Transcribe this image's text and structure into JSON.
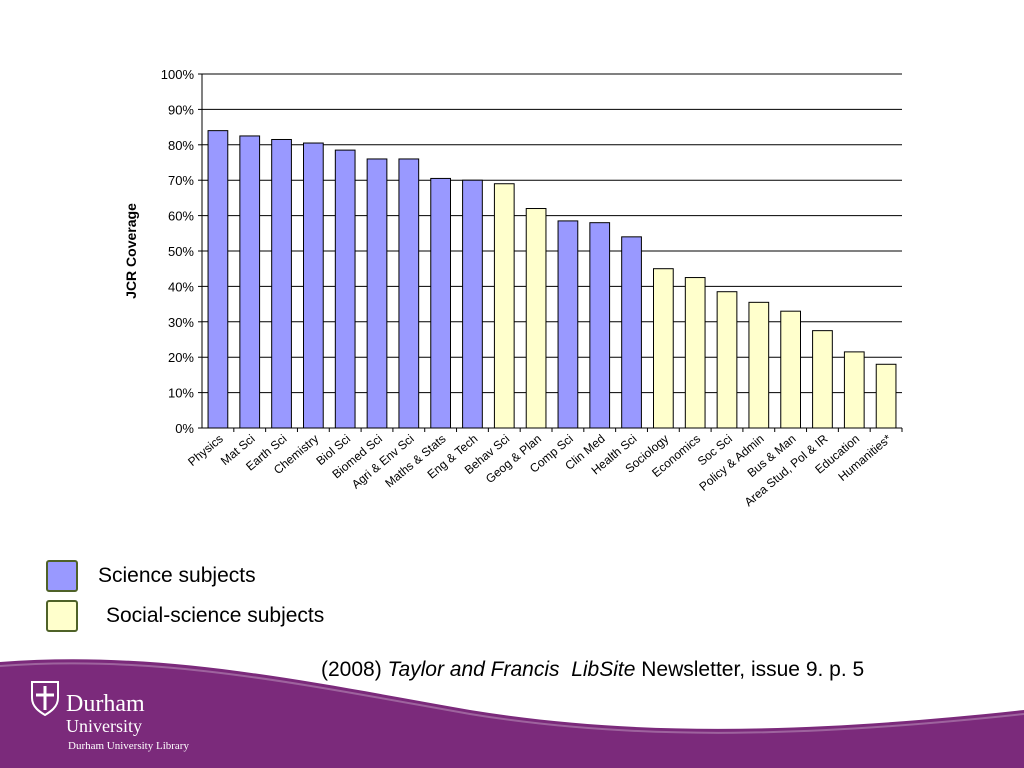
{
  "chart_data": {
    "type": "bar",
    "ylabel": "JCR Coverage",
    "xlabel": "",
    "ylim": [
      0,
      100
    ],
    "yticks": [
      "0%",
      "10%",
      "20%",
      "30%",
      "40%",
      "50%",
      "60%",
      "70%",
      "80%",
      "90%",
      "100%"
    ],
    "grid": true,
    "categories": [
      "Physics",
      "Mat Sci",
      "Earth Sci",
      "Chemistry",
      "Biol Sci",
      "Biomed Sci",
      "Agri & Env Sci",
      "Maths & Stats",
      "Eng & Tech",
      "Behav Sci",
      "Geog & Plan",
      "Comp Sci",
      "Clin Med",
      "Health Sci",
      "Sociology",
      "Economics",
      "Soc Sci",
      "Policy & Admin",
      "Bus & Man",
      "Area Stud, Pol & IR",
      "Education",
      "Humanities*"
    ],
    "values": [
      84,
      82.5,
      81.5,
      80.5,
      78.5,
      76,
      76,
      70.5,
      70,
      69,
      62,
      58.5,
      58,
      54,
      45,
      42.5,
      38.5,
      35.5,
      33,
      27.5,
      21.5,
      18
    ],
    "groups": [
      "science",
      "science",
      "science",
      "science",
      "science",
      "science",
      "science",
      "science",
      "science",
      "social",
      "social",
      "science",
      "science",
      "science",
      "social",
      "social",
      "social",
      "social",
      "social",
      "social",
      "social",
      "social"
    ],
    "colors": {
      "science": "#9999ff",
      "social": "#ffffcc",
      "bar_stroke": "#000000"
    }
  },
  "legend": {
    "science": {
      "label": "Science subjects",
      "color": "#9999ff"
    },
    "social": {
      "label": "Social-science subjects",
      "color": "#ffffcc"
    }
  },
  "citation": {
    "year": "(2008)",
    "publisher": "Taylor and Francis",
    "product": "LibSite",
    "rest": "Newsletter, issue 9. p. 5"
  },
  "footer": {
    "color": "#7b2a7b",
    "logo_name": "Durham",
    "logo_university": "University",
    "logo_library": "Durham University Library"
  }
}
